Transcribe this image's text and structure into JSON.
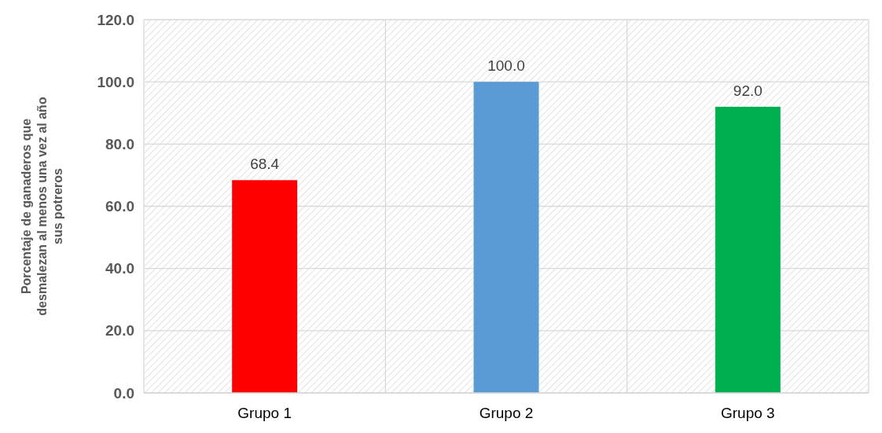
{
  "chart_data": {
    "type": "bar",
    "ylabel": "Porcentaje de ganaderos que desmalezan al menos una vez al año sus potreros",
    "categories": [
      "Grupo 1",
      "Grupo 2",
      "Grupo 3"
    ],
    "values": [
      68.4,
      100.0,
      92.0
    ],
    "colors": [
      "#ff0000",
      "#5b9bd5",
      "#00b050"
    ],
    "value_labels": [
      "68.4",
      "100.0",
      "92.0"
    ],
    "ylim": [
      0,
      120
    ],
    "yticks": [
      {
        "value": 0,
        "label": "0.0"
      },
      {
        "value": 20,
        "label": "20.0"
      },
      {
        "value": 40,
        "label": "40.0"
      },
      {
        "value": 60,
        "label": "60.0"
      },
      {
        "value": 80,
        "label": "80.0"
      },
      {
        "value": 100,
        "label": "100.0"
      },
      {
        "value": 120,
        "label": "120.0"
      }
    ],
    "grid": true
  }
}
